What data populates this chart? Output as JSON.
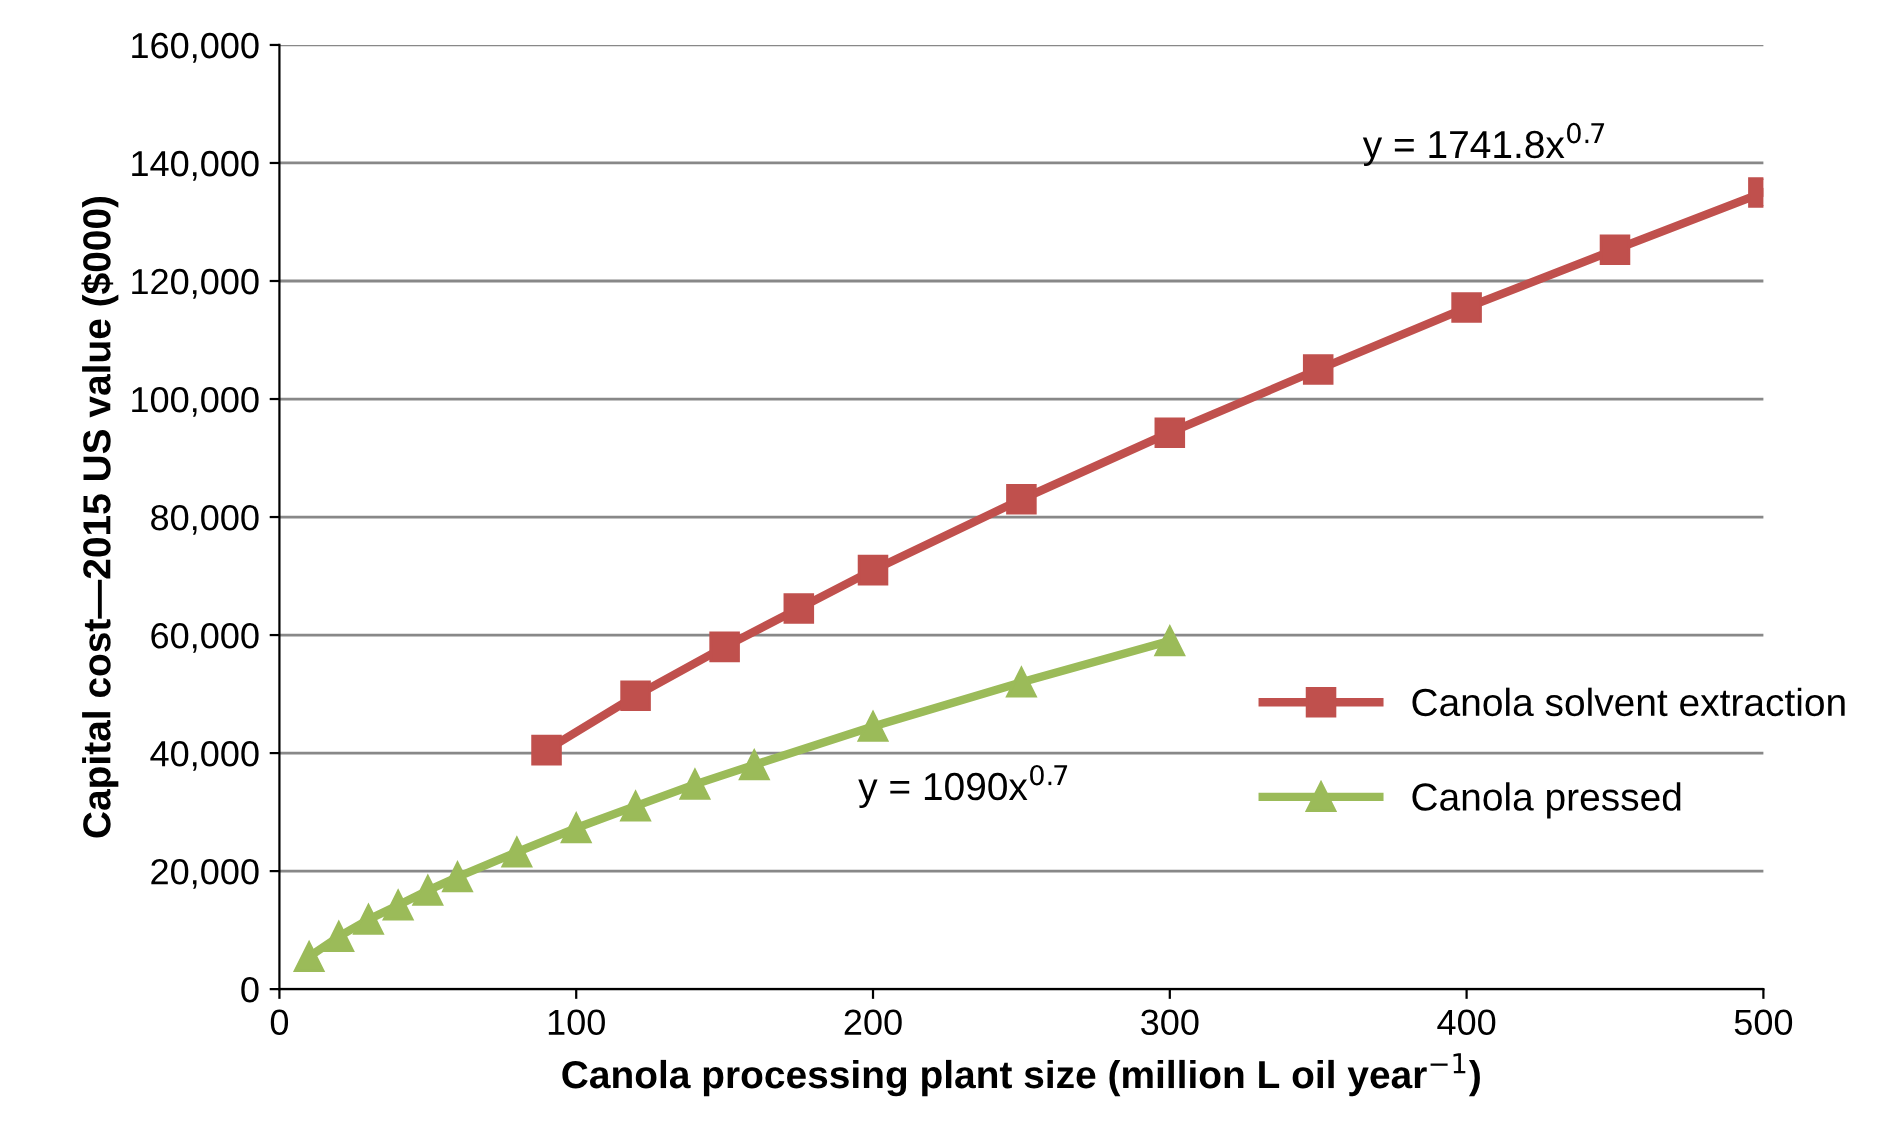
{
  "chart_data": {
    "type": "line",
    "xlabel": "Canola processing plant size (million L oil year$^{−1}$)",
    "ylabel": "Capital cost—2015 US value ($000)",
    "xlim": [
      0,
      500
    ],
    "xticks": [
      0,
      100,
      200,
      300,
      400,
      500
    ],
    "ylim": [
      0,
      160000
    ],
    "yticks": [
      {
        "value": 0,
        "label": "0"
      },
      {
        "value": 20000,
        "label": "20,000"
      },
      {
        "value": 40000,
        "label": "40,000"
      },
      {
        "value": 60000,
        "label": "60,000"
      },
      {
        "value": 80000,
        "label": "80,000"
      },
      {
        "value": 100000,
        "label": "100,000"
      },
      {
        "value": 120000,
        "label": "120,000"
      },
      {
        "value": 140000,
        "label": "140,000"
      },
      {
        "value": 160000,
        "label": "160,000"
      }
    ],
    "grid": "y",
    "legend": "right",
    "series": [
      {
        "name": "Canola solvent extraction",
        "color": "#c0504d",
        "marker": "square",
        "x": [
          90,
          120,
          150,
          175,
          200,
          250,
          300,
          350,
          400,
          450,
          500
        ],
        "values": [
          40500,
          49700,
          58000,
          64500,
          71000,
          83000,
          94300,
          105000,
          115500,
          125300,
          135000
        ]
      },
      {
        "name": "Canola pressed",
        "color": "#9bbb59",
        "marker": "triangle",
        "x": [
          10,
          20,
          30,
          40,
          50,
          60,
          80,
          100,
          120,
          140,
          160,
          200,
          250,
          300
        ],
        "values": [
          5500,
          8900,
          11800,
          14200,
          16700,
          19000,
          23200,
          27300,
          31000,
          34700,
          38000,
          44500,
          52000,
          59000
        ]
      }
    ],
    "annotations": [
      "y = 1741.8x$^{0.7}$",
      "y = 1090x$^{0.7}$"
    ]
  }
}
